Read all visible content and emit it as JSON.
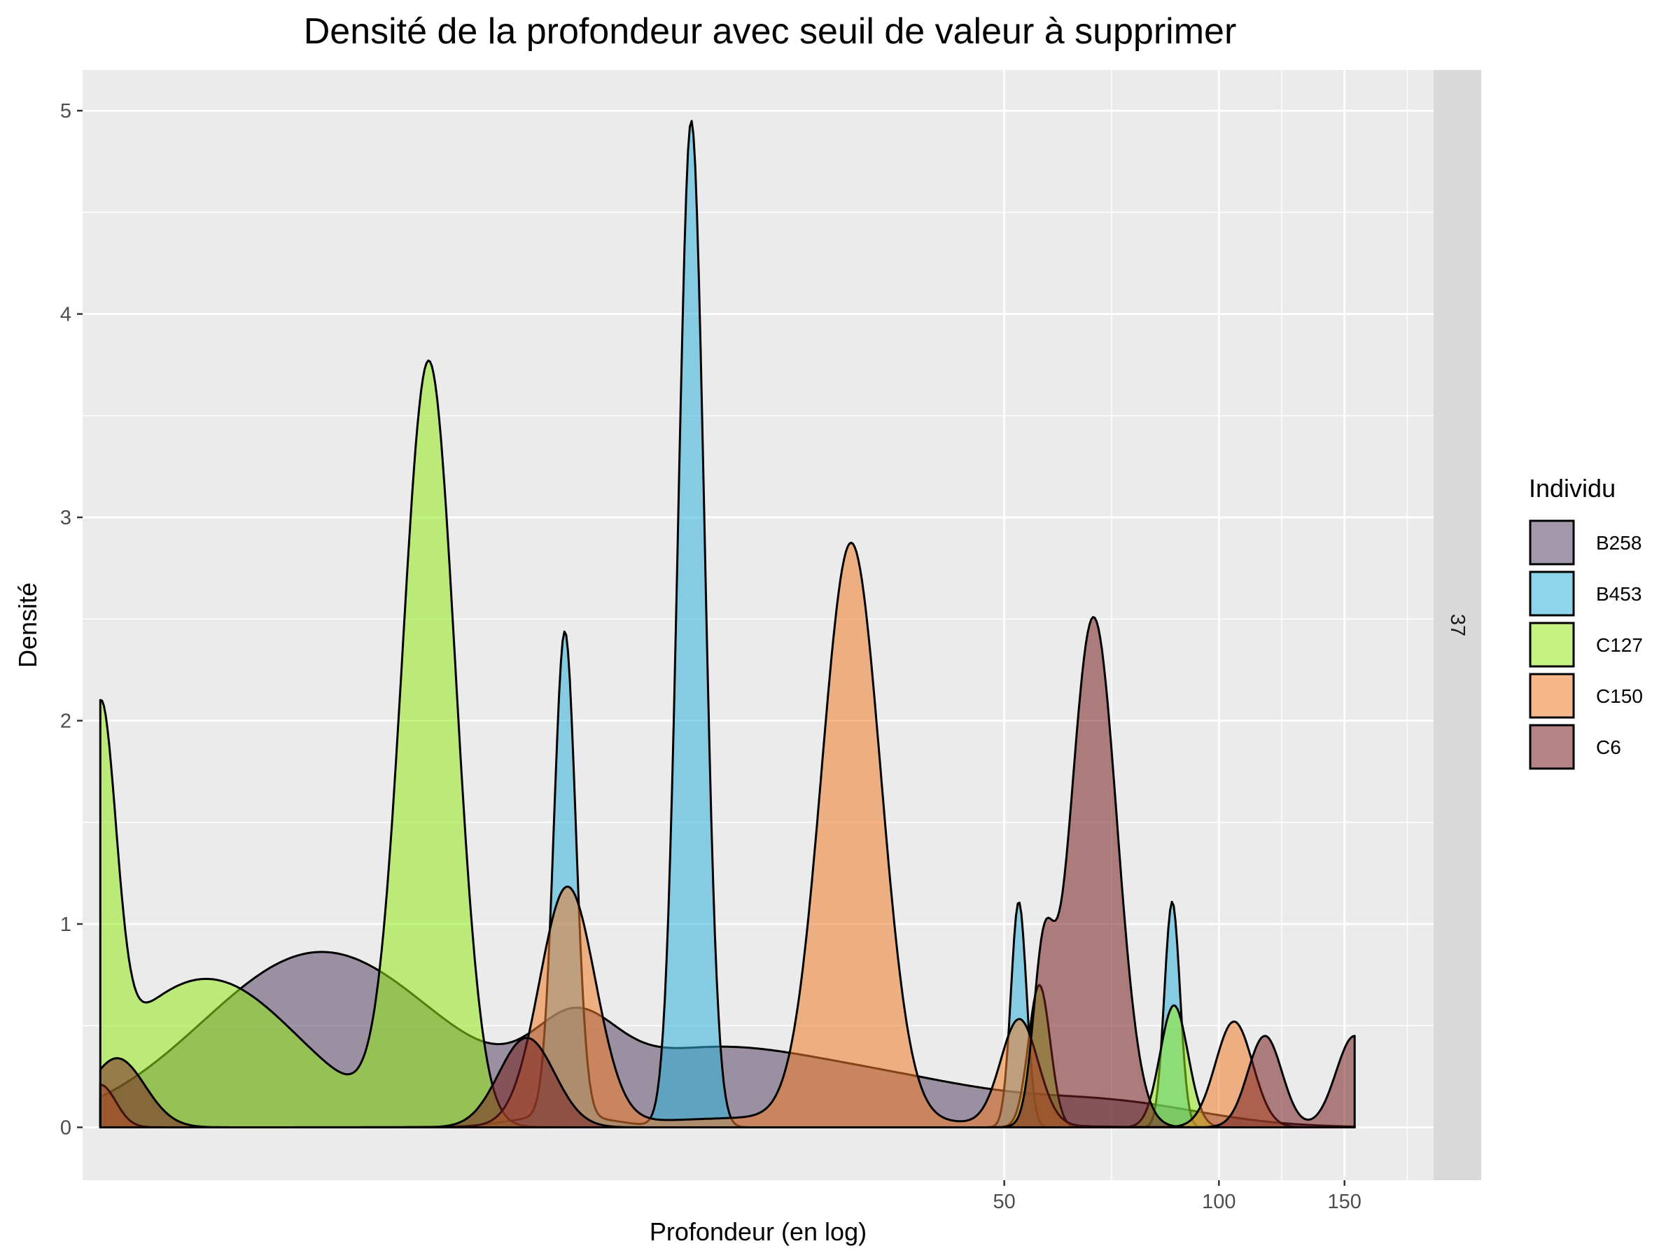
{
  "chart_data": {
    "type": "area",
    "title": "Densité de la profondeur avec seuil de valeur à supprimer",
    "xlabel": "Profondeur (en log)",
    "ylabel": "Densité",
    "x_scale": "log",
    "x_ticks": [
      50,
      100,
      150
    ],
    "y_ticks": [
      0,
      1,
      2,
      3,
      4,
      5
    ],
    "xlim": [
      2.55,
      200
    ],
    "ylim": [
      -0.26,
      5.2
    ],
    "grid": true,
    "facet_strip": "37",
    "legend": {
      "title": "Individu",
      "placement": "right"
    },
    "series": [
      {
        "name": "B258",
        "color": "#584565",
        "peaks": [
          {
            "x": 5.5,
            "h": 0.86,
            "s": 0.38
          },
          {
            "x": 12.5,
            "h": 0.3,
            "s": 0.13
          },
          {
            "x": 19.5,
            "h": 0.38,
            "s": 0.4
          },
          {
            "x": 38,
            "h": 0.14,
            "s": 0.3
          },
          {
            "x": 70,
            "h": 0.12,
            "s": 0.3
          }
        ]
      },
      {
        "name": "B453",
        "color": "#32b2dc",
        "peaks": [
          {
            "x": 12.1,
            "h": 2.38,
            "s": 0.035
          },
          {
            "x": 18.2,
            "h": 4.95,
            "s": 0.042
          },
          {
            "x": 52.4,
            "h": 1.11,
            "s": 0.025
          },
          {
            "x": 86,
            "h": 1.11,
            "s": 0.025
          },
          {
            "x": 12,
            "h": 0.06,
            "s": 0.15
          }
        ]
      },
      {
        "name": "C127",
        "color": "#93ea1b",
        "peaks": [
          {
            "x": 2.7,
            "h": 1.72,
            "s": 0.05
          },
          {
            "x": 7.8,
            "h": 3.73,
            "s": 0.085
          },
          {
            "x": 3.8,
            "h": 0.73,
            "s": 0.3
          },
          {
            "x": 56,
            "h": 0.7,
            "s": 0.035
          },
          {
            "x": 86.5,
            "h": 0.6,
            "s": 0.045
          }
        ]
      },
      {
        "name": "C150",
        "color": "#ee7b2b",
        "peaks": [
          {
            "x": 12.2,
            "h": 1.17,
            "s": 0.09
          },
          {
            "x": 30.5,
            "h": 2.83,
            "s": 0.095
          },
          {
            "x": 52.5,
            "h": 0.52,
            "s": 0.06
          },
          {
            "x": 105,
            "h": 0.52,
            "s": 0.06
          },
          {
            "x": 2.7,
            "h": 0.21,
            "s": 0.05
          },
          {
            "x": 25,
            "h": 0.05,
            "s": 0.45
          }
        ]
      },
      {
        "name": "C6",
        "color": "#792123",
        "peaks": [
          {
            "x": 2.85,
            "h": 0.34,
            "s": 0.09
          },
          {
            "x": 10.7,
            "h": 0.44,
            "s": 0.09
          },
          {
            "x": 56.7,
            "h": 0.74,
            "s": 0.033
          },
          {
            "x": 66.7,
            "h": 2.51,
            "s": 0.075
          },
          {
            "x": 116,
            "h": 0.45,
            "s": 0.055
          },
          {
            "x": 155,
            "h": 0.45,
            "s": 0.06
          }
        ]
      }
    ]
  }
}
